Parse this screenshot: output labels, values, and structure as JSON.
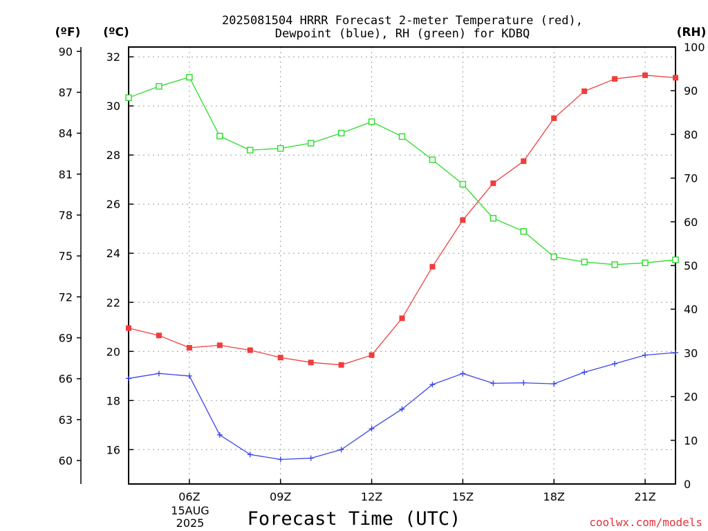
{
  "title": {
    "line1": "2025081504 HRRR Forecast 2-meter Temperature (red),",
    "line2": "Dewpoint (blue), RH (green) for KDBQ"
  },
  "axis_units": {
    "fahrenheit": "(ºF)",
    "celsius": "(ºC)",
    "rh": "(RH)"
  },
  "date_label": {
    "day": "15AUG",
    "year": "2025"
  },
  "credit": "coolwx.com/models",
  "colors": {
    "temperature": "#f03c3c",
    "dewpoint": "#3c46e6",
    "rh": "#28dc28",
    "grid": "#9a9a9a"
  },
  "chart_data": {
    "type": "line",
    "title": "2025081504 HRRR Forecast 2-meter Temperature (red), Dewpoint (blue), RH (green) for KDBQ",
    "xlabel": "Forecast Time (UTC)",
    "x": [
      4,
      5,
      6,
      7,
      8,
      9,
      10,
      11,
      12,
      13,
      14,
      15,
      16,
      17,
      18,
      19,
      20,
      21,
      22
    ],
    "xlim": [
      4,
      22
    ],
    "x_ticks": [
      {
        "value": 6,
        "label": "06Z"
      },
      {
        "value": 9,
        "label": "09Z"
      },
      {
        "value": 12,
        "label": "12Z"
      },
      {
        "value": 15,
        "label": "15Z"
      },
      {
        "value": 18,
        "label": "18Z"
      },
      {
        "value": 21,
        "label": "21Z"
      }
    ],
    "left_axis_c": {
      "label": "(ºC)",
      "ylim": [
        14.6,
        32.4
      ],
      "ticks": [
        16,
        18,
        20,
        22,
        24,
        26,
        28,
        30,
        32
      ]
    },
    "left_axis_f": {
      "label": "(ºF)",
      "ticks": [
        60,
        63,
        66,
        69,
        72,
        75,
        78,
        81,
        84,
        87,
        90
      ]
    },
    "right_axis_rh": {
      "label": "(RH)",
      "ylim": [
        0,
        100
      ],
      "ticks": [
        0,
        10,
        20,
        30,
        40,
        50,
        60,
        70,
        80,
        90,
        100
      ]
    },
    "grid": true,
    "series": [
      {
        "name": "Temperature (red)",
        "axis": "celsius",
        "marker": "filled-square",
        "values": [
          20.95,
          20.65,
          20.15,
          20.25,
          20.05,
          19.75,
          19.55,
          19.45,
          19.85,
          21.35,
          23.45,
          25.35,
          26.85,
          27.75,
          29.5,
          30.6,
          31.1,
          31.25,
          31.15
        ]
      },
      {
        "name": "Dewpoint (blue)",
        "axis": "celsius",
        "marker": "plus",
        "values": [
          18.9,
          19.1,
          19.0,
          16.6,
          15.8,
          15.6,
          15.65,
          16.0,
          16.85,
          17.65,
          18.65,
          19.1,
          18.7,
          18.72,
          18.68,
          19.15,
          19.5,
          19.85,
          19.95
        ]
      },
      {
        "name": "RH (green)",
        "axis": "rh",
        "marker": "open-square",
        "values": [
          88.4,
          91.0,
          93.1,
          79.6,
          76.4,
          76.8,
          78.0,
          80.3,
          82.9,
          79.5,
          74.2,
          68.6,
          60.8,
          57.8,
          52.0,
          50.8,
          50.2,
          50.6,
          51.3
        ]
      }
    ]
  }
}
